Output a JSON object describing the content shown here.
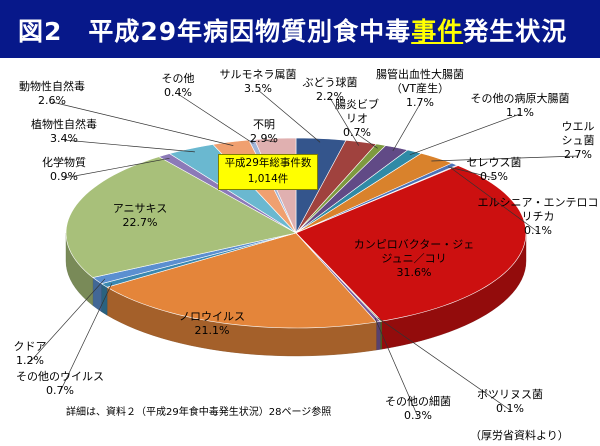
{
  "header": {
    "title_prefix": "図2　平成29年病因物質別食中毒",
    "title_highlight": "事件",
    "title_suffix": "発生状況"
  },
  "total_box": {
    "line1": "平成29年総事件数",
    "line2": "1,014件"
  },
  "note": "詳細は、資料２（平成29年食中毒発生状況）28ページ参照",
  "source": "（厚労省資料より）",
  "chart_data": {
    "type": "pie",
    "title": "平成29年病因物質別食中毒事件発生状況",
    "unit": "%",
    "slices": [
      {
        "name": "サルモネラ属菌",
        "value": 3.5,
        "pct_label": "3.5%",
        "color": "#34558c"
      },
      {
        "name": "ぶどう球菌",
        "value": 2.2,
        "pct_label": "2.2%",
        "color": "#a0423e"
      },
      {
        "name": "腸炎ビブリオ",
        "value": 0.7,
        "pct_label": "0.7%",
        "color": "#7e9a3f"
      },
      {
        "name": "腸管出血性大腸菌（VT産生）",
        "value": 1.7,
        "pct_label": "1.7%",
        "color": "#614a86"
      },
      {
        "name": "その他の病原大腸菌",
        "value": 1.1,
        "pct_label": "1.1%",
        "color": "#2f8aa6"
      },
      {
        "name": "ウエルシュ菌",
        "value": 2.7,
        "pct_label": "2.7%",
        "color": "#d9822c"
      },
      {
        "name": "セレウス菌",
        "value": 0.5,
        "pct_label": "0.5%",
        "color": "#4a72b8"
      },
      {
        "name": "エルシニア・エンテロコリチカ",
        "value": 0.1,
        "pct_label": "0.1%",
        "color": "#b5443f"
      },
      {
        "name": "カンピロバクター・ジェジュニ／コリ",
        "value": 31.6,
        "pct_label": "31.6%",
        "color": "#cc1010"
      },
      {
        "name": "ボツリヌス菌",
        "value": 0.1,
        "pct_label": "0.1%",
        "color": "#6c8f30"
      },
      {
        "name": "その他の細菌",
        "value": 0.3,
        "pct_label": "0.3%",
        "color": "#7a5a9a"
      },
      {
        "name": "ノロウイルス",
        "value": 21.1,
        "pct_label": "21.1%",
        "color": "#e4853a"
      },
      {
        "name": "その他のウイルス",
        "value": 0.7,
        "pct_label": "0.7%",
        "color": "#3a88b0"
      },
      {
        "name": "クドア",
        "value": 1.2,
        "pct_label": "1.2%",
        "color": "#5b8fd0"
      },
      {
        "name": "アニサキス",
        "value": 22.7,
        "pct_label": "22.7%",
        "color": "#a8c07a"
      },
      {
        "name": "化学物質",
        "value": 0.9,
        "pct_label": "0.9%",
        "color": "#8c7ab8"
      },
      {
        "name": "植物性自然毒",
        "value": 3.4,
        "pct_label": "3.4%",
        "color": "#6ab8d0"
      },
      {
        "name": "動物性自然毒",
        "value": 2.6,
        "pct_label": "2.6%",
        "color": "#f0a070"
      },
      {
        "name": "その他",
        "value": 0.4,
        "pct_label": "0.4%",
        "color": "#a0b4d8"
      },
      {
        "name": "不明",
        "value": 2.9,
        "pct_label": "2.9%",
        "color": "#e0b0b0"
      }
    ]
  }
}
